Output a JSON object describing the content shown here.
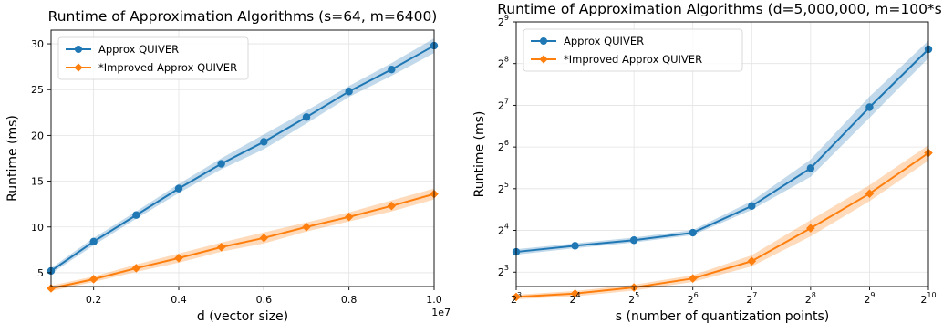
{
  "colors": {
    "series1": "#1f77b4",
    "series2": "#ff7f0e"
  },
  "chart_data": [
    {
      "type": "line",
      "title": "Runtime of Approximation Algorithms (s=64, m=6400)",
      "xlabel": "d (vector size)",
      "ylabel": "Runtime (ms)",
      "x_scale_note": "1e7",
      "xlim": [
        0.1,
        1.0
      ],
      "ylim": [
        3.5,
        31.5
      ],
      "x_ticks": [
        0.2,
        0.4,
        0.6,
        0.8,
        1.0
      ],
      "x_tick_labels": [
        "0.2",
        "0.4",
        "0.6",
        "0.8",
        "1.0"
      ],
      "y_ticks": [
        5,
        10,
        15,
        20,
        25,
        30
      ],
      "y_tick_labels": [
        "5",
        "10",
        "15",
        "20",
        "25",
        "30"
      ],
      "grid": true,
      "legend_position": "top-left",
      "x": [
        0.1,
        0.2,
        0.3,
        0.4,
        0.5,
        0.6,
        0.7,
        0.8,
        0.9,
        1.0
      ],
      "series": [
        {
          "name": "Approx QUIVER",
          "marker": "circle",
          "color": "#1f77b4",
          "values": [
            5.2,
            8.4,
            11.3,
            14.2,
            16.9,
            19.3,
            22.0,
            24.8,
            27.2,
            29.8
          ],
          "band": [
            0.3,
            0.4,
            0.4,
            0.5,
            0.6,
            0.8,
            0.7,
            0.6,
            0.7,
            0.8
          ]
        },
        {
          "name": "*Improved Approx QUIVER",
          "marker": "diamond",
          "color": "#ff7f0e",
          "values": [
            3.3,
            4.3,
            5.5,
            6.6,
            7.8,
            8.8,
            10.0,
            11.1,
            12.3,
            13.6
          ],
          "band": [
            0.3,
            0.3,
            0.4,
            0.5,
            0.5,
            0.6,
            0.5,
            0.5,
            0.6,
            0.6
          ]
        }
      ]
    },
    {
      "type": "line",
      "title": "Runtime of Approximation Algorithms (d=5,000,000, m=100*s)",
      "xlabel": "s (number of quantization points)",
      "ylabel": "Runtime (ms)",
      "x_log_base": 2,
      "y_log_base": 2,
      "xlim": [
        8,
        1024
      ],
      "ylim": [
        6.3,
        512
      ],
      "x_ticks": [
        8,
        16,
        32,
        64,
        128,
        256,
        512,
        1024
      ],
      "x_tick_exponents": [
        "3",
        "4",
        "5",
        "6",
        "7",
        "8",
        "9",
        "10"
      ],
      "y_ticks": [
        8,
        16,
        32,
        64,
        128,
        256,
        512
      ],
      "y_tick_exponents": [
        "3",
        "4",
        "5",
        "6",
        "7",
        "8",
        "9"
      ],
      "tick_base": "2",
      "grid": true,
      "legend_position": "top-left",
      "x": [
        8,
        16,
        32,
        64,
        128,
        256,
        512,
        1024
      ],
      "series": [
        {
          "name": "Approx QUIVER",
          "marker": "circle",
          "color": "#1f77b4",
          "values": [
            11.2,
            12.4,
            13.6,
            15.4,
            24.0,
            45.0,
            124.0,
            325.0
          ],
          "band_lo": [
            10.7,
            11.9,
            13.1,
            14.8,
            22.5,
            39.0,
            104.0,
            280.0
          ],
          "band_hi": [
            11.7,
            12.9,
            14.2,
            16.1,
            26.0,
            52.0,
            148.0,
            375.0
          ]
        },
        {
          "name": "*Improved Approx QUIVER",
          "marker": "diamond",
          "color": "#ff7f0e",
          "values": [
            5.3,
            5.6,
            6.2,
            7.2,
            9.6,
            16.6,
            29.5,
            58.0
          ],
          "band_lo": [
            5.1,
            5.35,
            5.9,
            6.8,
            8.8,
            14.5,
            26.0,
            51.0
          ],
          "band_hi": [
            5.5,
            5.85,
            6.5,
            7.6,
            10.6,
            19.0,
            34.0,
            66.0
          ]
        }
      ]
    }
  ]
}
